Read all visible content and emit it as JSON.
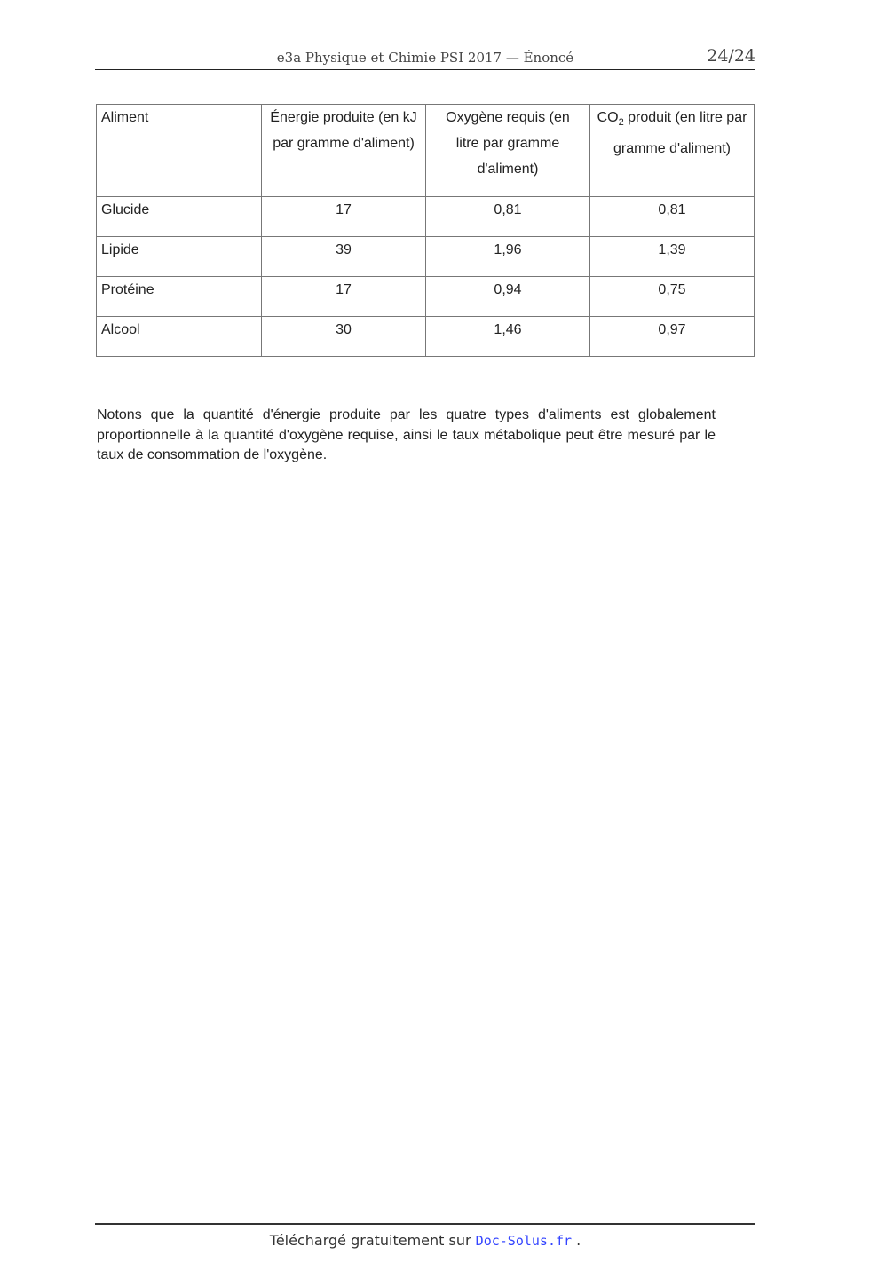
{
  "header": {
    "title": "e3a Physique et Chimie PSI 2017 — Énoncé",
    "page": "24/24"
  },
  "table": {
    "headers": [
      "Aliment",
      "Énergie produite (en kJ par gramme d'aliment)",
      "Oxygène requis (en litre par gramme d'aliment)",
      "CO",
      "2",
      " produit (en litre par gramme d'aliment)"
    ],
    "rows": [
      [
        "Glucide",
        "17",
        "0,81",
        "0,81"
      ],
      [
        "Lipide",
        "39",
        "1,96",
        "1,39"
      ],
      [
        "Protéine",
        "17",
        "0,94",
        "0,75"
      ],
      [
        "Alcool",
        "30",
        "1,46",
        "0,97"
      ]
    ]
  },
  "paragraph": "Notons que la quantité d'énergie produite par les quatre types d'aliments est globalement proportionnelle à la quantité d'oxygène requise, ainsi le taux métabolique peut être mesuré par le taux de consommation de l'oxygène.",
  "footer": {
    "text": "Téléchargé gratuitement sur",
    "link": "Doc-Solus.fr",
    "end": ".",
    "link_color": "#3344ff"
  }
}
